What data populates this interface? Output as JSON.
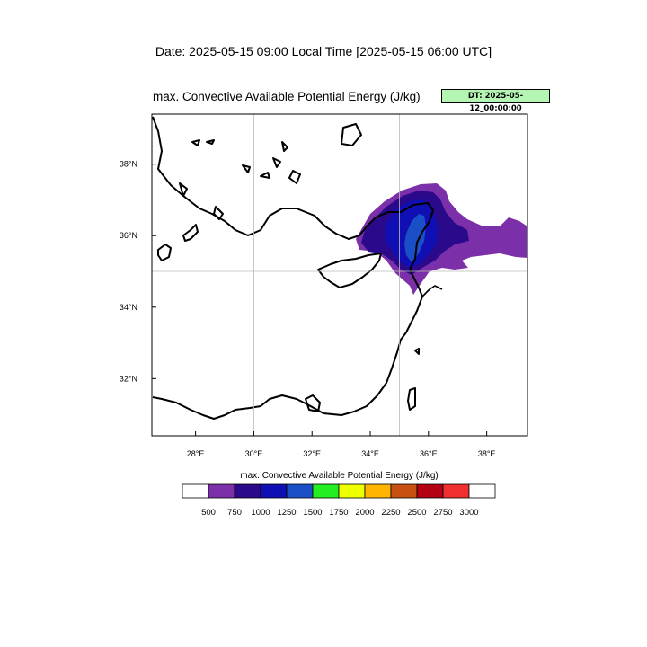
{
  "header": {
    "date_line": "Date: 2025-05-15  09:00 Local Time [2025-05-15  06:00 UTC]",
    "map_title": "max. Convective Available Potential Energy   (J/kg)",
    "dt_badge": "DT: 2025-05-12_00:00:00"
  },
  "map": {
    "lon_range": [
      26.5,
      39.4
    ],
    "lat_range": [
      30.4,
      39.4
    ],
    "lon_ticks": [
      {
        "value": 28,
        "label": "28°E"
      },
      {
        "value": 30,
        "label": "30°E"
      },
      {
        "value": 32,
        "label": "32°E"
      },
      {
        "value": 34,
        "label": "34°E"
      },
      {
        "value": 36,
        "label": "36°E"
      },
      {
        "value": 38,
        "label": "38°E"
      }
    ],
    "lat_ticks": [
      {
        "value": 32,
        "label": "32°N"
      },
      {
        "value": 34,
        "label": "34°N"
      },
      {
        "value": 36,
        "label": "36°N"
      },
      {
        "value": 38,
        "label": "38°N"
      }
    ],
    "gridlines": {
      "lon": 30,
      "lon2": 35,
      "lat": 35
    }
  },
  "colorbar": {
    "title": "max. Convective Available Potential Energy  (J/kg)",
    "colors": [
      "#ffffff",
      "#7b2fa8",
      "#2a0a8a",
      "#0f0fb4",
      "#1a4fc8",
      "#22ee22",
      "#eeff00",
      "#ffb400",
      "#c85010",
      "#b40014",
      "#f03030",
      "#ffffff"
    ],
    "labels": [
      "500",
      "750",
      "1000",
      "1250",
      "1500",
      "1750",
      "2000",
      "2250",
      "2500",
      "2750",
      "3000"
    ]
  },
  "colors": {
    "purple": "#7b2fa8",
    "dark_blue": "#2a0a8a",
    "blue": "#0f0fb4",
    "royal": "#1a4fc8",
    "badge_bg": "#b4f5b4"
  }
}
